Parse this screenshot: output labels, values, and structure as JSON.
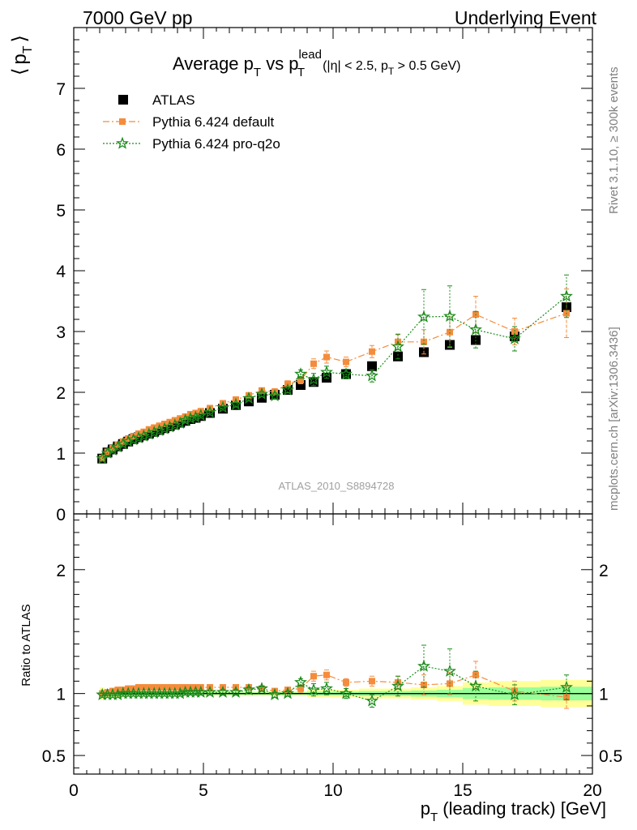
{
  "header": {
    "left": "7000 GeV pp",
    "right": "Underlying Event"
  },
  "side_labels": {
    "rivet": "Rivet 3.1.10, ≥ 300k events",
    "mcplots": "mcplots.cern.ch [arXiv:1306.3436]"
  },
  "watermark": "ATLAS_2010_S8894728",
  "chart_data": [
    {
      "type": "scatter",
      "title": "Average p_T vs p_T^lead (|η| < 2.5, p_T > 0.5 GeV)",
      "title_parts": {
        "pre": "Average p",
        "sub1": "T",
        "mid": " vs p",
        "sup2": "lead",
        "sub2": "T",
        "cut_pre": "(|η| < 2.5, p",
        "cut_sub": "T",
        "cut_post": " > 0.5 GeV)"
      },
      "ylabel": "⟨ p_T ⟩",
      "ylabel_parts": {
        "open": "⟨",
        "p": "p",
        "sub": "T",
        "close": "⟩"
      },
      "xlim": [
        0,
        20
      ],
      "ylim": [
        0,
        8
      ],
      "yticks": [
        "0",
        "1",
        "2",
        "3",
        "4",
        "5",
        "6",
        "7"
      ],
      "legend_position": "top-left",
      "series": [
        {
          "name": "ATLAS",
          "color": "#000000",
          "marker": "square",
          "x": [
            1.1,
            1.3,
            1.5,
            1.7,
            1.9,
            2.1,
            2.3,
            2.5,
            2.7,
            2.9,
            3.1,
            3.3,
            3.5,
            3.7,
            3.9,
            4.1,
            4.3,
            4.5,
            4.7,
            4.9,
            5.25,
            5.75,
            6.25,
            6.75,
            7.25,
            7.75,
            8.25,
            8.75,
            9.25,
            9.75,
            10.5,
            11.5,
            12.5,
            13.5,
            14.5,
            15.5,
            17.0,
            19.0
          ],
          "y": [
            0.91,
            1.01,
            1.06,
            1.11,
            1.15,
            1.19,
            1.23,
            1.26,
            1.29,
            1.32,
            1.35,
            1.38,
            1.41,
            1.44,
            1.47,
            1.5,
            1.53,
            1.56,
            1.58,
            1.61,
            1.66,
            1.73,
            1.79,
            1.85,
            1.91,
            1.96,
            2.04,
            2.12,
            2.17,
            2.24,
            2.3,
            2.43,
            2.59,
            2.66,
            2.78,
            2.86,
            2.92,
            3.4
          ]
        },
        {
          "name": "Pythia 6.424 default",
          "color": "#f58c3c",
          "marker": "square-small",
          "line": "dashdot",
          "x": [
            1.1,
            1.3,
            1.5,
            1.7,
            1.9,
            2.1,
            2.3,
            2.5,
            2.7,
            2.9,
            3.1,
            3.3,
            3.5,
            3.7,
            3.9,
            4.1,
            4.3,
            4.5,
            4.7,
            4.9,
            5.25,
            5.75,
            6.25,
            6.75,
            7.25,
            7.75,
            8.25,
            8.75,
            9.25,
            9.75,
            10.5,
            11.5,
            12.5,
            13.5,
            14.5,
            15.5,
            17.0,
            19.0
          ],
          "y": [
            0.92,
            1.02,
            1.08,
            1.14,
            1.19,
            1.24,
            1.28,
            1.32,
            1.35,
            1.39,
            1.42,
            1.45,
            1.48,
            1.51,
            1.54,
            1.57,
            1.6,
            1.64,
            1.66,
            1.69,
            1.74,
            1.82,
            1.88,
            1.95,
            2.03,
            2.01,
            2.14,
            2.2,
            2.47,
            2.58,
            2.5,
            2.67,
            2.83,
            2.83,
            2.99,
            3.28,
            3.0,
            3.3
          ],
          "err": [
            0.01,
            0.01,
            0.01,
            0.01,
            0.01,
            0.01,
            0.01,
            0.01,
            0.01,
            0.01,
            0.01,
            0.01,
            0.01,
            0.01,
            0.01,
            0.01,
            0.02,
            0.02,
            0.02,
            0.02,
            0.02,
            0.02,
            0.03,
            0.03,
            0.04,
            0.05,
            0.05,
            0.06,
            0.08,
            0.1,
            0.08,
            0.1,
            0.13,
            0.2,
            0.25,
            0.3,
            0.22,
            0.4
          ]
        },
        {
          "name": "Pythia 6.424 pro-q2o",
          "color": "#1a8a1a",
          "marker": "star",
          "line": "dotted",
          "x": [
            1.1,
            1.3,
            1.5,
            1.7,
            1.9,
            2.1,
            2.3,
            2.5,
            2.7,
            2.9,
            3.1,
            3.3,
            3.5,
            3.7,
            3.9,
            4.1,
            4.3,
            4.5,
            4.7,
            4.9,
            5.25,
            5.75,
            6.25,
            6.75,
            7.25,
            7.75,
            8.25,
            8.75,
            9.25,
            9.75,
            10.5,
            11.5,
            12.5,
            13.5,
            14.5,
            15.5,
            17.0,
            19.0
          ],
          "y": [
            0.91,
            1.0,
            1.05,
            1.1,
            1.15,
            1.19,
            1.22,
            1.25,
            1.28,
            1.31,
            1.34,
            1.37,
            1.4,
            1.43,
            1.46,
            1.49,
            1.54,
            1.57,
            1.59,
            1.62,
            1.67,
            1.75,
            1.8,
            1.9,
            1.97,
            1.94,
            2.04,
            2.3,
            2.21,
            2.33,
            2.3,
            2.27,
            2.75,
            3.24,
            3.25,
            3.03,
            2.88,
            3.58
          ],
          "err": [
            0.01,
            0.01,
            0.01,
            0.01,
            0.01,
            0.01,
            0.01,
            0.01,
            0.01,
            0.01,
            0.01,
            0.01,
            0.01,
            0.01,
            0.01,
            0.01,
            0.02,
            0.02,
            0.02,
            0.02,
            0.02,
            0.02,
            0.03,
            0.03,
            0.04,
            0.05,
            0.05,
            0.07,
            0.1,
            0.1,
            0.08,
            0.1,
            0.2,
            0.45,
            0.5,
            0.3,
            0.2,
            0.35
          ]
        }
      ]
    },
    {
      "type": "scatter",
      "title": "",
      "xlabel": "p_T (leading track) [GeV]",
      "xlabel_parts": {
        "p": "p",
        "sub": "T",
        "rest": " (leading track) [GeV]"
      },
      "ylabel": "Ratio to ATLAS",
      "xlim": [
        0,
        20
      ],
      "xticks": [
        "0",
        "5",
        "10",
        "15",
        "20"
      ],
      "ylim": [
        0.35,
        2.45
      ],
      "yticks": [
        "0.5",
        "1",
        "2"
      ],
      "uncertainty_bands": {
        "yellow": "#ffff99",
        "green": "#99ff99",
        "x_edges": [
          1.0,
          1.2,
          2.0,
          3.0,
          4.0,
          5.0,
          6.0,
          7.0,
          8.0,
          9.0,
          10.0,
          11.0,
          12.0,
          13.0,
          14.0,
          15.0,
          16.0,
          18.0,
          20.0
        ],
        "yellow_halfwidth": [
          0.05,
          0.03,
          0.02,
          0.02,
          0.02,
          0.02,
          0.02,
          0.02,
          0.02,
          0.03,
          0.03,
          0.04,
          0.04,
          0.05,
          0.06,
          0.09,
          0.1,
          0.11
        ],
        "green_halfwidth": [
          0.03,
          0.015,
          0.01,
          0.01,
          0.01,
          0.01,
          0.01,
          0.01,
          0.01,
          0.015,
          0.015,
          0.02,
          0.02,
          0.025,
          0.03,
          0.045,
          0.05,
          0.055
        ]
      },
      "series": [
        {
          "name": "Pythia 6.424 default",
          "color": "#f58c3c",
          "marker": "square-small",
          "line": "dashdot",
          "x": [
            1.1,
            1.3,
            1.5,
            1.7,
            1.9,
            2.1,
            2.3,
            2.5,
            2.7,
            2.9,
            3.1,
            3.3,
            3.5,
            3.7,
            3.9,
            4.1,
            4.3,
            4.5,
            4.7,
            4.9,
            5.25,
            5.75,
            6.25,
            6.75,
            7.25,
            7.75,
            8.25,
            8.75,
            9.25,
            9.75,
            10.5,
            11.5,
            12.5,
            13.5,
            14.5,
            15.5,
            17.0,
            19.0
          ],
          "y": [
            1.0,
            1.01,
            1.02,
            1.03,
            1.03,
            1.04,
            1.04,
            1.05,
            1.05,
            1.05,
            1.05,
            1.05,
            1.05,
            1.05,
            1.05,
            1.05,
            1.05,
            1.05,
            1.05,
            1.05,
            1.05,
            1.05,
            1.05,
            1.05,
            1.04,
            1.02,
            1.03,
            1.04,
            1.14,
            1.15,
            1.09,
            1.1,
            1.09,
            1.07,
            1.08,
            1.15,
            1.02,
            0.97
          ],
          "err": [
            0.01,
            0.01,
            0.01,
            0.01,
            0.01,
            0.01,
            0.01,
            0.01,
            0.01,
            0.01,
            0.01,
            0.01,
            0.01,
            0.01,
            0.01,
            0.01,
            0.01,
            0.01,
            0.01,
            0.01,
            0.01,
            0.02,
            0.02,
            0.02,
            0.02,
            0.02,
            0.02,
            0.03,
            0.04,
            0.04,
            0.03,
            0.04,
            0.05,
            0.08,
            0.09,
            0.11,
            0.08,
            0.09
          ]
        },
        {
          "name": "Pythia 6.424 pro-q2o",
          "color": "#1a8a1a",
          "marker": "star",
          "line": "dotted",
          "x": [
            1.1,
            1.3,
            1.5,
            1.7,
            1.9,
            2.1,
            2.3,
            2.5,
            2.7,
            2.9,
            3.1,
            3.3,
            3.5,
            3.7,
            3.9,
            4.1,
            4.3,
            4.5,
            4.7,
            4.9,
            5.25,
            5.75,
            6.25,
            6.75,
            7.25,
            7.75,
            8.25,
            8.75,
            9.25,
            9.75,
            10.5,
            11.5,
            12.5,
            13.5,
            14.5,
            15.5,
            17.0,
            19.0
          ],
          "y": [
            0.99,
            0.99,
            0.99,
            0.99,
            1.0,
            1.0,
            1.0,
            1.0,
            1.0,
            1.0,
            1.0,
            1.0,
            1.0,
            1.0,
            1.0,
            1.0,
            1.01,
            1.01,
            1.01,
            1.01,
            1.01,
            1.01,
            1.01,
            1.03,
            1.04,
            0.99,
            1.0,
            1.09,
            1.03,
            1.04,
            1.0,
            0.94,
            1.06,
            1.22,
            1.18,
            1.06,
            0.99,
            1.05
          ],
          "err": [
            0.01,
            0.01,
            0.01,
            0.01,
            0.01,
            0.01,
            0.01,
            0.01,
            0.01,
            0.01,
            0.01,
            0.01,
            0.01,
            0.01,
            0.01,
            0.01,
            0.01,
            0.01,
            0.01,
            0.01,
            0.01,
            0.02,
            0.02,
            0.02,
            0.02,
            0.02,
            0.02,
            0.03,
            0.05,
            0.05,
            0.04,
            0.05,
            0.08,
            0.17,
            0.18,
            0.12,
            0.08,
            0.1
          ]
        }
      ]
    }
  ]
}
